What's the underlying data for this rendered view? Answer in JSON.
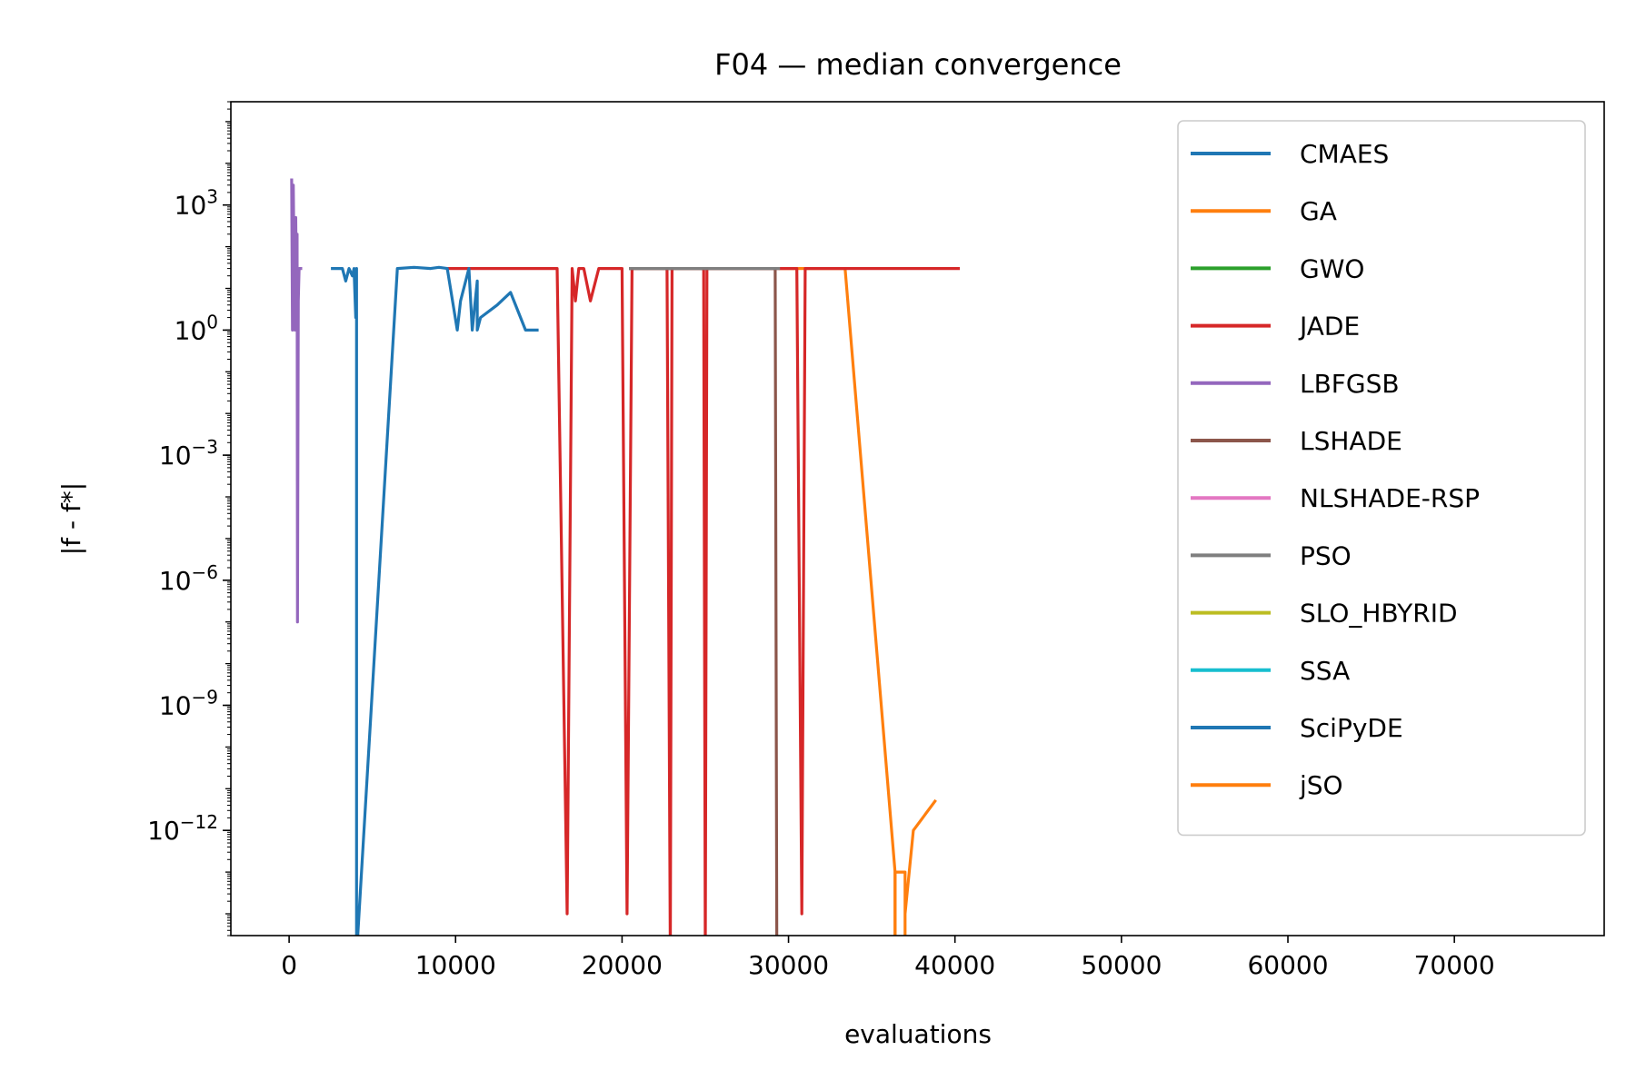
{
  "chart_data": {
    "type": "line",
    "title": "F04 — median convergence",
    "xlabel": "evaluations",
    "ylabel": "|f - f*|",
    "yscale": "log",
    "xlim": [
      -3500,
      79000
    ],
    "ylim": [
      3e-15,
      300000
    ],
    "xticks": [
      0,
      10000,
      20000,
      30000,
      40000,
      50000,
      60000,
      70000
    ],
    "yticks": [
      {
        "value": 1000,
        "base": "10",
        "exp": "3"
      },
      {
        "value": 1,
        "base": "10",
        "exp": "0"
      },
      {
        "value": 0.001,
        "base": "10",
        "exp": "−3"
      },
      {
        "value": 1e-06,
        "base": "10",
        "exp": "−6"
      },
      {
        "value": 1e-09,
        "base": "10",
        "exp": "−9"
      },
      {
        "value": 1e-12,
        "base": "10",
        "exp": "−12"
      }
    ],
    "grid": false,
    "legend_position": "top-right",
    "series": [
      {
        "name": "CMAES",
        "color": "#1f77b4",
        "points": []
      },
      {
        "name": "GA",
        "color": "#ff7f0e",
        "points": [
          [
            29500,
            30
          ],
          [
            33400,
            30
          ],
          [
            36400,
            1e-13
          ],
          [
            36400,
            1e-15
          ]
        ]
      },
      {
        "name": "GWO",
        "color": "#2ca02c",
        "points": []
      },
      {
        "name": "JADE",
        "color": "#d62728",
        "points": [
          [
            9500,
            30
          ],
          [
            16100,
            30
          ],
          [
            16700,
            1e-14
          ],
          [
            17000,
            30
          ],
          [
            17200,
            5
          ],
          [
            17400,
            30
          ],
          [
            17700,
            30
          ],
          [
            18100,
            5
          ],
          [
            18600,
            30
          ],
          [
            20000,
            30
          ],
          [
            20300,
            1e-14
          ],
          [
            20600,
            30
          ],
          [
            22700,
            30
          ],
          [
            22900,
            1e-15
          ],
          [
            23000,
            30
          ],
          [
            24900,
            30
          ],
          [
            25000,
            1e-15
          ],
          [
            25100,
            30
          ],
          [
            30500,
            30
          ],
          [
            30800,
            1e-14
          ],
          [
            31000,
            30
          ],
          [
            40200,
            30
          ]
        ]
      },
      {
        "name": "LBFGSB",
        "color": "#9467bd",
        "points": [
          [
            150,
            4000
          ],
          [
            200,
            1
          ],
          [
            250,
            3000
          ],
          [
            300,
            30
          ],
          [
            350,
            1
          ],
          [
            400,
            500
          ],
          [
            450,
            5
          ],
          [
            480,
            200
          ],
          [
            500,
            1e-07
          ],
          [
            550,
            5
          ],
          [
            600,
            30
          ],
          [
            700,
            30
          ]
        ]
      },
      {
        "name": "LSHADE",
        "color": "#8c564b",
        "points": [
          [
            20500,
            30
          ],
          [
            29200,
            30
          ],
          [
            29300,
            1e-15
          ]
        ]
      },
      {
        "name": "NLSHADE-RSP",
        "color": "#e377c2",
        "points": []
      },
      {
        "name": "PSO",
        "color": "#7f7f7f",
        "points": [
          [
            20500,
            30
          ],
          [
            29400,
            30
          ]
        ]
      },
      {
        "name": "SLO_HBYRID",
        "color": "#bcbd22",
        "points": []
      },
      {
        "name": "SSA",
        "color": "#17becf",
        "points": []
      },
      {
        "name": "SciPyDE",
        "color": "#1f77b4",
        "points": [
          [
            2600,
            30
          ],
          [
            3200,
            30
          ],
          [
            3400,
            15
          ],
          [
            3600,
            30
          ],
          [
            3800,
            20
          ],
          [
            3900,
            30
          ],
          [
            4000,
            2
          ],
          [
            4050,
            30
          ],
          [
            4050,
            1e-15
          ],
          [
            6500,
            30
          ],
          [
            7500,
            32
          ],
          [
            8500,
            30
          ],
          [
            9000,
            32
          ],
          [
            9500,
            30
          ],
          [
            10100,
            1
          ],
          [
            10300,
            5
          ],
          [
            10800,
            30
          ],
          [
            11000,
            1
          ],
          [
            11300,
            15
          ],
          [
            11300,
            1
          ],
          [
            11500,
            2
          ],
          [
            12500,
            4
          ],
          [
            13300,
            8
          ],
          [
            14200,
            1
          ],
          [
            14900,
            1
          ]
        ]
      },
      {
        "name": "jSO",
        "color": "#ff7f0e",
        "points": [
          [
            36400,
            1e-15
          ],
          [
            36400,
            1e-13
          ],
          [
            37000,
            1e-13
          ],
          [
            37000,
            1e-15
          ],
          [
            37000,
            1e-14
          ],
          [
            37500,
            1e-12
          ],
          [
            38800,
            5e-12
          ]
        ]
      }
    ]
  }
}
